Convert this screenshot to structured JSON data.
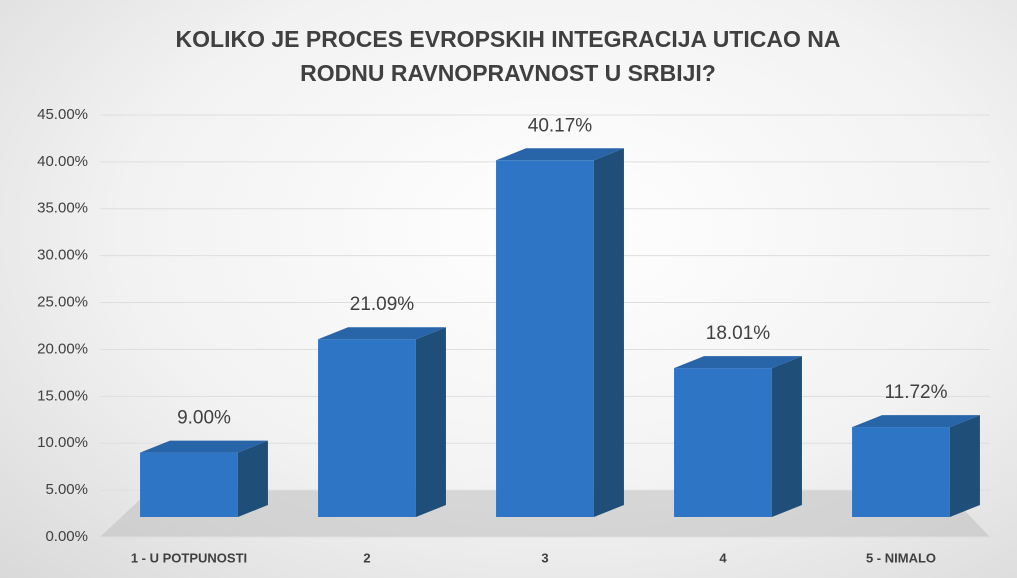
{
  "chart_data": {
    "type": "bar3d",
    "title": "KOLIKO JE PROCES EVROPSKIH INTEGRACIJA UTICAO NA RODNU RAVNOPRAVNOST U SRBIJI?",
    "categories": [
      "1 - U POTPUNOSTI",
      "2",
      "3",
      "4",
      "5 - NIMALO"
    ],
    "values": [
      9.0,
      21.09,
      40.17,
      18.01,
      11.72
    ],
    "value_labels": [
      "9.00%",
      "21.09%",
      "40.17%",
      "18.01%",
      "11.72%"
    ],
    "color": "#2e75c6",
    "ylim": [
      0,
      45
    ],
    "yticks": [
      {
        "value": 0,
        "label": "0.00%"
      },
      {
        "value": 5,
        "label": "5.00%"
      },
      {
        "value": 10,
        "label": "10.00%"
      },
      {
        "value": 15,
        "label": "15.00%"
      },
      {
        "value": 20,
        "label": "20.00%"
      },
      {
        "value": 25,
        "label": "25.00%"
      },
      {
        "value": 30,
        "label": "30.00%"
      },
      {
        "value": 35,
        "label": "35.00%"
      },
      {
        "value": 40,
        "label": "40.00%"
      },
      {
        "value": 45,
        "label": "45.00%"
      }
    ],
    "grid": true
  }
}
